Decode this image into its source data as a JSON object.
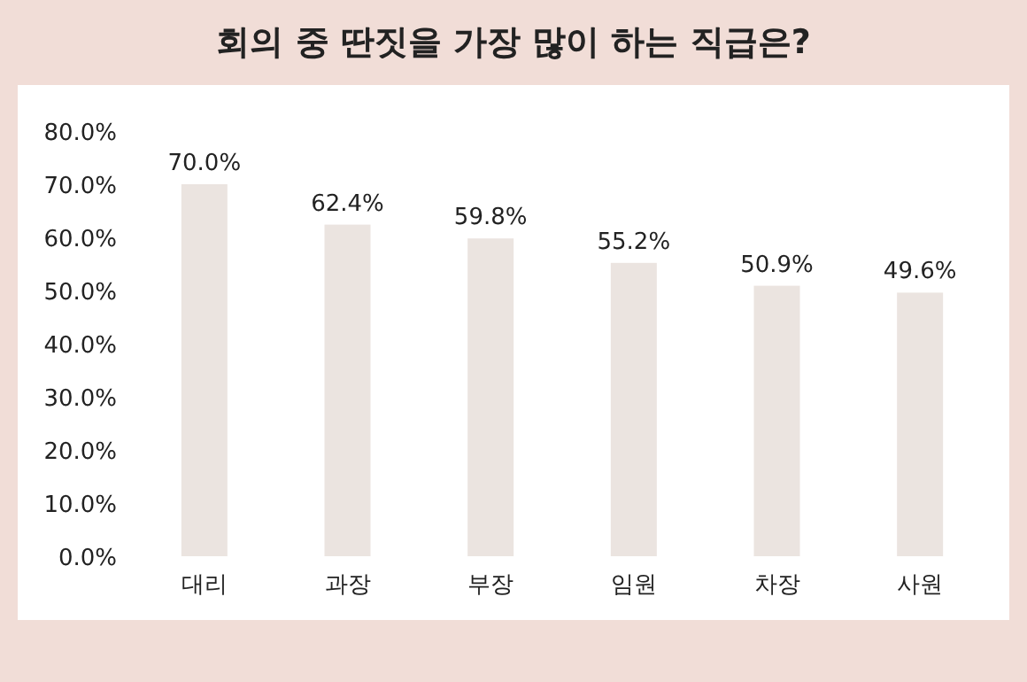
{
  "chart_data": {
    "type": "bar",
    "title": "회의 중 딴짓을 가장 많이 하는 직급은?",
    "categories": [
      "대리",
      "과장",
      "부장",
      "임원",
      "차장",
      "사원"
    ],
    "values": [
      70.0,
      62.4,
      59.8,
      55.2,
      50.9,
      49.6
    ],
    "value_labels": [
      "70.0%",
      "62.4%",
      "59.8%",
      "55.2%",
      "50.9%",
      "49.6%"
    ],
    "color": "#ebe4e0",
    "ylim": [
      0,
      80
    ],
    "yticks": [
      {
        "value": 0,
        "label": "0.0%"
      },
      {
        "value": 10,
        "label": "10.0%"
      },
      {
        "value": 20,
        "label": "20.0%"
      },
      {
        "value": 30,
        "label": "30.0%"
      },
      {
        "value": 40,
        "label": "40.0%"
      },
      {
        "value": 50,
        "label": "50.0%"
      },
      {
        "value": 60,
        "label": "60.0%"
      },
      {
        "value": 70,
        "label": "70.0%"
      },
      {
        "value": 80,
        "label": "80.0%"
      }
    ],
    "grid": false
  }
}
